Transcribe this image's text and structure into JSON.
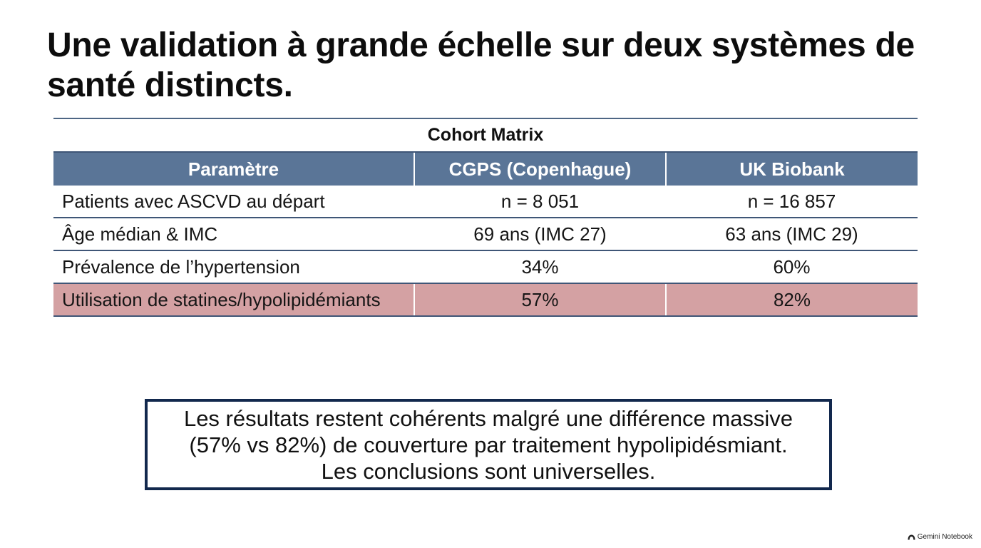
{
  "slide": {
    "title": "Une validation à grande échelle sur deux systèmes de santé distincts."
  },
  "table": {
    "caption": "Cohort Matrix",
    "headers": [
      "Paramètre",
      "CGPS (Copenhague)",
      "UK Biobank"
    ],
    "rows": [
      {
        "param": "Patients avec ASCVD au départ",
        "cgps": "n = 8 051",
        "ukb": "n = 16 857"
      },
      {
        "param": "Âge médian & IMC",
        "cgps": "69 ans (IMC 27)",
        "ukb": "63 ans (IMC 29)"
      },
      {
        "param": "Prévalence de l’hypertension",
        "cgps": "34%",
        "ukb": "60%"
      },
      {
        "param": "Utilisation de statines/hypolipidémiants",
        "cgps": "57%",
        "ukb": "82%",
        "highlighted": true
      }
    ]
  },
  "conclusion": {
    "lines": [
      "Les résultats restent cohérents malgré une différence massive",
      "(57% vs 82%) de couverture par traitement hypolipidésmiant.",
      "Les conclusions sont universelles."
    ]
  },
  "footer": {
    "brand_icon": "gemini-logo-icon",
    "brand_label": "Gemini Notebook"
  },
  "colors": {
    "header_bg": "#5a7597",
    "highlight_row_bg": "#d4a1a3",
    "rule_color": "#3f5677",
    "conclusion_border": "#12284d"
  }
}
